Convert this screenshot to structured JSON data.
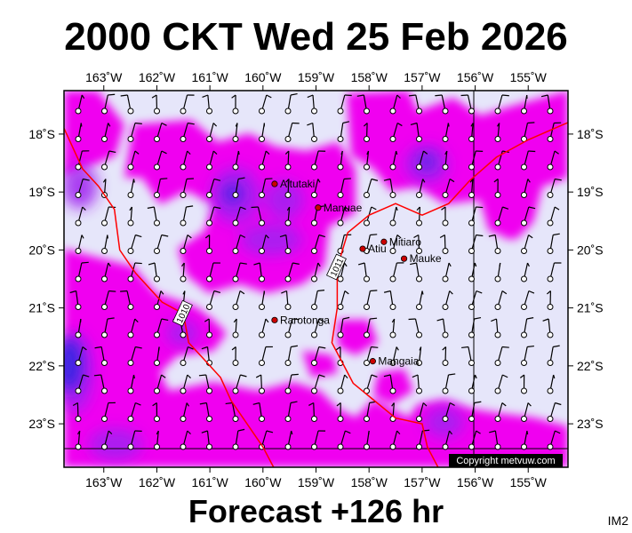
{
  "title": "2000 CKT Wed 25 Feb 2026",
  "footer": "Forecast +126 hr",
  "model_id": "IM2",
  "copyright": "Copyright metvuw.com",
  "map": {
    "lon_range": [
      -163.75,
      -154.25
    ],
    "lat_range": [
      -23.75,
      -17.25
    ],
    "lon_ticks": [
      {
        "lon": -163,
        "label": "163˚W"
      },
      {
        "lon": -162,
        "label": "162˚W"
      },
      {
        "lon": -161,
        "label": "161˚W"
      },
      {
        "lon": -160,
        "label": "160˚W"
      },
      {
        "lon": -159,
        "label": "159˚W"
      },
      {
        "lon": -158,
        "label": "158˚W"
      },
      {
        "lon": -157,
        "label": "157˚W"
      },
      {
        "lon": -156,
        "label": "156˚W"
      },
      {
        "lon": -155,
        "label": "155˚W"
      }
    ],
    "lat_ticks": [
      {
        "lat": -18,
        "label": "18˚S"
      },
      {
        "lat": -19,
        "label": "19˚S"
      },
      {
        "lat": -20,
        "label": "20˚S"
      },
      {
        "lat": -21,
        "label": "21˚S"
      },
      {
        "lat": -22,
        "label": "22˚S"
      },
      {
        "lat": -23,
        "label": "23˚S"
      }
    ],
    "places": [
      {
        "name": "Aitutaki",
        "lon": -159.78,
        "lat": -18.86
      },
      {
        "name": "Manuae",
        "lon": -158.96,
        "lat": -19.27
      },
      {
        "name": "Atiu",
        "lon": -158.12,
        "lat": -19.98
      },
      {
        "name": "Mitiaro",
        "lon": -157.72,
        "lat": -19.86
      },
      {
        "name": "Mauke",
        "lon": -157.34,
        "lat": -20.15
      },
      {
        "name": "Rarotonga",
        "lon": -159.78,
        "lat": -21.21
      },
      {
        "name": "Mangaia",
        "lon": -157.93,
        "lat": -21.92
      }
    ],
    "isobars": [
      {
        "label": "1010",
        "points": [
          [
            -163.75,
            -17.9
          ],
          [
            -163.4,
            -18.6
          ],
          [
            -163.1,
            -18.9
          ],
          [
            -162.8,
            -19.3
          ],
          [
            -162.7,
            -20.0
          ],
          [
            -162.4,
            -20.4
          ],
          [
            -161.9,
            -20.9
          ],
          [
            -161.5,
            -21.1
          ],
          [
            -161.4,
            -21.6
          ],
          [
            -161.1,
            -21.9
          ],
          [
            -160.8,
            -22.2
          ],
          [
            -160.6,
            -22.6
          ],
          [
            -160.3,
            -23.0
          ],
          [
            -160.0,
            -23.4
          ],
          [
            -159.8,
            -23.75
          ]
        ]
      },
      {
        "label": "1011",
        "points": [
          [
            -154.25,
            -17.8
          ],
          [
            -155.0,
            -18.1
          ],
          [
            -155.6,
            -18.4
          ],
          [
            -156.1,
            -18.8
          ],
          [
            -156.5,
            -19.2
          ],
          [
            -157.0,
            -19.4
          ],
          [
            -157.5,
            -19.2
          ],
          [
            -158.0,
            -19.4
          ],
          [
            -158.4,
            -19.7
          ],
          [
            -158.6,
            -20.3
          ],
          [
            -158.6,
            -21.0
          ],
          [
            -158.7,
            -21.6
          ],
          [
            -158.3,
            -22.3
          ],
          [
            -157.9,
            -22.6
          ],
          [
            -157.5,
            -22.9
          ],
          [
            -157.0,
            -23.0
          ],
          [
            -156.9,
            -23.4
          ],
          [
            -156.7,
            -23.75
          ]
        ]
      }
    ]
  }
}
